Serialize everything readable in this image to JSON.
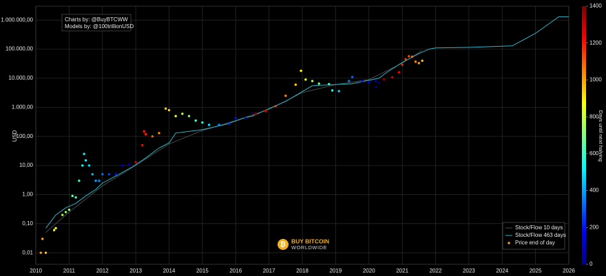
{
  "chart_data": {
    "type": "scatter",
    "annotations": [
      "Charts by: @BuyBTCWW",
      "Models by: @100trillionUSD"
    ],
    "watermark": [
      "BUY BITCOIN",
      "WORLDWIDE"
    ],
    "ylabel": "USD",
    "log_y": true,
    "grid": true,
    "legend": "lower right",
    "xlim": [
      2010,
      2026
    ],
    "xticks": [
      2010,
      2011,
      2012,
      2013,
      2014,
      2015,
      2016,
      2017,
      2018,
      2019,
      2020,
      2021,
      2022,
      2023,
      2024,
      2025,
      2026
    ],
    "ylim": [
      0.004,
      3000000
    ],
    "yticks": [
      {
        "value": 0.01,
        "label": "0,01"
      },
      {
        "value": 0.1,
        "label": "0,10"
      },
      {
        "value": 1,
        "label": "1,00"
      },
      {
        "value": 10,
        "label": "10,00"
      },
      {
        "value": 100,
        "label": "100,00"
      },
      {
        "value": 1000,
        "label": "1.000,00"
      },
      {
        "value": 10000,
        "label": "10.000,00"
      },
      {
        "value": 100000,
        "label": "100.000,00"
      },
      {
        "value": 1000000,
        "label": "1.000.000,00"
      }
    ],
    "colorbar": {
      "label": "Days until next halving",
      "colormap": "jet",
      "clim": [
        0,
        1400
      ],
      "ticks": [
        0,
        200,
        400,
        600,
        800,
        1000,
        1200,
        1400
      ]
    },
    "series": [
      {
        "name": "Stock/Flow 10 days",
        "type": "line",
        "color": "#4a4a4a",
        "x": [
          2010.3,
          2011.0,
          2012.0,
          2013.0,
          2014.0,
          2015.0,
          2016.0,
          2017.0,
          2018.0,
          2019.0,
          2020.0,
          2021.0,
          2021.6
        ],
        "values": [
          0.05,
          0.25,
          2,
          10,
          55,
          160,
          350,
          850,
          3200,
          6000,
          9000,
          33000,
          90000
        ]
      },
      {
        "name": "Stock/Flow 463 days",
        "type": "line",
        "color": "#2ab7c9",
        "x": [
          2010.3,
          2010.6,
          2010.9,
          2011.2,
          2011.5,
          2011.8,
          2012.0,
          2012.5,
          2012.9,
          2013.3,
          2013.7,
          2014.0,
          2014.2,
          2015.0,
          2015.7,
          2016.3,
          2016.5,
          2017.0,
          2017.5,
          2018.0,
          2018.3,
          2019.5,
          2020.3,
          2020.5,
          2021.0,
          2021.5,
          2021.8,
          2022.0,
          2023.0,
          2024.3,
          2025.0,
          2025.7,
          2026.0
        ],
        "values": [
          0.07,
          0.2,
          0.35,
          0.5,
          0.9,
          1.5,
          2.5,
          5,
          9,
          18,
          40,
          60,
          130,
          170,
          260,
          450,
          500,
          900,
          1600,
          3500,
          5500,
          6500,
          10000,
          15000,
          35000,
          70000,
          100000,
          110000,
          115000,
          130000,
          350000,
          1300000,
          1300000
        ]
      },
      {
        "name": "Price end of day",
        "type": "scatter",
        "color": "#f5a020",
        "x": [
          2010.15,
          2010.2,
          2010.3,
          2010.55,
          2010.6,
          2010.8,
          2010.9,
          2011.0,
          2011.1,
          2011.2,
          2011.3,
          2011.4,
          2011.45,
          2011.5,
          2011.6,
          2011.7,
          2011.8,
          2011.9,
          2012.0,
          2012.2,
          2012.4,
          2012.6,
          2012.8,
          2013.0,
          2013.2,
          2013.25,
          2013.3,
          2013.5,
          2013.7,
          2013.9,
          2014.0,
          2014.2,
          2014.4,
          2014.6,
          2014.8,
          2015.0,
          2015.2,
          2015.5,
          2015.8,
          2016.0,
          2016.3,
          2016.5,
          2016.6,
          2016.9,
          2017.2,
          2017.5,
          2017.8,
          2017.96,
          2018.1,
          2018.3,
          2018.5,
          2018.8,
          2018.9,
          2019.1,
          2019.4,
          2019.5,
          2019.8,
          2020.0,
          2020.2,
          2020.22,
          2020.3,
          2020.45,
          2020.7,
          2020.9,
          2021.0,
          2021.1,
          2021.2,
          2021.3,
          2021.4,
          2021.5,
          2021.6
        ],
        "values": [
          0.01,
          0.03,
          0.01,
          0.06,
          0.07,
          0.2,
          0.25,
          0.3,
          0.9,
          0.8,
          3,
          10,
          25,
          15,
          10,
          5,
          3,
          3,
          5,
          5,
          5,
          10,
          11,
          13,
          50,
          150,
          120,
          100,
          130,
          900,
          800,
          500,
          600,
          500,
          350,
          300,
          250,
          250,
          280,
          430,
          420,
          650,
          600,
          750,
          1100,
          2500,
          6000,
          18000,
          9000,
          8000,
          6500,
          6300,
          3800,
          3600,
          8000,
          11000,
          8000,
          7200,
          8000,
          5000,
          7000,
          9200,
          10800,
          16000,
          29000,
          45000,
          57000,
          55000,
          37000,
          33000,
          40000
        ],
        "days": [
          1007,
          989,
          952,
          861,
          843,
          770,
          734,
          697,
          661,
          624,
          588,
          551,
          533,
          515,
          478,
          442,
          405,
          369,
          332,
          259,
          186,
          113,
          40,
          1285,
          1212,
          1194,
          1176,
          1103,
          1030,
          957,
          920,
          847,
          774,
          701,
          628,
          555,
          482,
          372,
          263,
          190,
          80,
          7,
          1372,
          1263,
          1153,
          1044,
          934,
          876,
          825,
          752,
          679,
          569,
          533,
          460,
          350,
          314,
          204,
          131,
          58,
          51,
          22,
          1391,
          1296,
          1223,
          1186,
          1150,
          1113,
          1077,
          1040,
          1004,
          967
        ]
      }
    ]
  }
}
